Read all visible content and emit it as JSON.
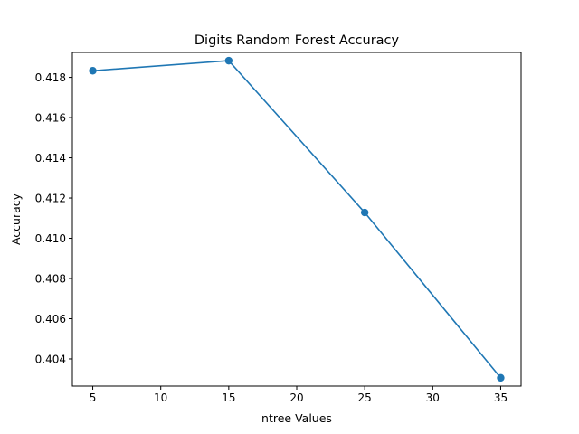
{
  "chart_data": {
    "type": "line",
    "title": "Digits Random Forest Accuracy",
    "xlabel": "ntree Values",
    "ylabel": "Accuracy",
    "x": [
      5,
      15,
      25,
      35
    ],
    "series": [
      {
        "values": [
          0.41833,
          0.41883,
          0.41128,
          0.40306
        ]
      }
    ],
    "xlim": [
      3.5,
      36.5
    ],
    "ylim": [
      0.40265,
      0.41924
    ],
    "xticks": [
      5,
      10,
      15,
      20,
      25,
      30,
      35
    ],
    "yticks": [
      0.404,
      0.406,
      0.408,
      0.41,
      0.412,
      0.414,
      0.416,
      0.418
    ],
    "ytick_labels": [
      "0.404",
      "0.406",
      "0.408",
      "0.410",
      "0.412",
      "0.414",
      "0.416",
      "0.418"
    ],
    "grid": false,
    "line_color": "#1f77b4"
  }
}
